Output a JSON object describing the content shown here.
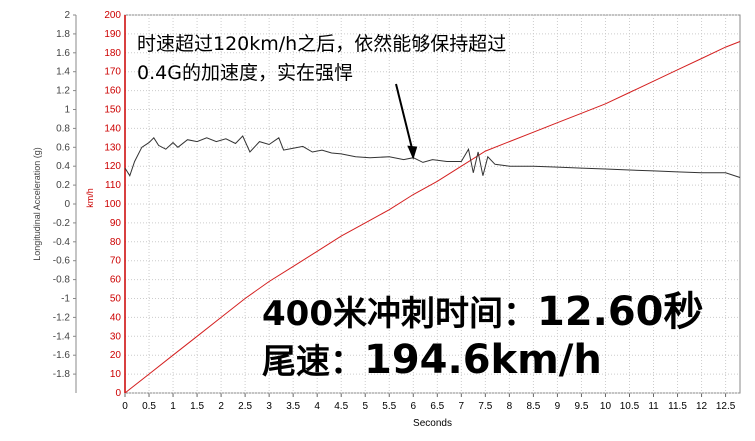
{
  "chart_data": {
    "type": "line",
    "xlabel": "Seconds",
    "xlim": [
      0,
      12.8
    ],
    "x_ticks": [
      "0",
      "0.5",
      "1",
      "1.5",
      "2",
      "2.5",
      "3",
      "3.5",
      "4",
      "4.5",
      "5",
      "5.5",
      "6",
      "6.5",
      "7",
      "7.5",
      "8",
      "8.5",
      "9",
      "9.5",
      "10",
      "10.5",
      "11",
      "11.5",
      "12",
      "12.5"
    ],
    "y_left": {
      "label": "Longitudinal Acceleration (g)",
      "lim": [
        -2,
        2
      ],
      "ticks": [
        "2",
        "1.8",
        "1.6",
        "1.4",
        "1.2",
        "1",
        "0.8",
        "0.6",
        "0.4",
        "0.2",
        "0",
        "-0.2",
        "-0.4",
        "-0.6",
        "-0.8",
        "-1",
        "-1.2",
        "-1.4",
        "-1.6",
        "-1.8"
      ],
      "color": "#444444"
    },
    "y_right": {
      "label": "km/h",
      "lim": [
        0,
        200
      ],
      "ticks": [
        "200",
        "190",
        "180",
        "170",
        "160",
        "150",
        "140",
        "130",
        "120",
        "110",
        "100",
        "90",
        "80",
        "70",
        "60",
        "50",
        "40",
        "30",
        "20",
        "10",
        "0"
      ],
      "color": "#cc0000"
    },
    "grid": true,
    "series": [
      {
        "axis": "right",
        "color": "#d42020",
        "points": [
          [
            0,
            0
          ],
          [
            0.5,
            10
          ],
          [
            1,
            20
          ],
          [
            1.5,
            30
          ],
          [
            2,
            40
          ],
          [
            2.5,
            50
          ],
          [
            3,
            59
          ],
          [
            3.5,
            67
          ],
          [
            4,
            75
          ],
          [
            4.5,
            83
          ],
          [
            5,
            90
          ],
          [
            5.5,
            97
          ],
          [
            6,
            105
          ],
          [
            6.5,
            112
          ],
          [
            7,
            120
          ],
          [
            7.5,
            128
          ],
          [
            8,
            133
          ],
          [
            8.5,
            138
          ],
          [
            9,
            143
          ],
          [
            9.5,
            148
          ],
          [
            10,
            153
          ],
          [
            10.5,
            159
          ],
          [
            11,
            165
          ],
          [
            11.5,
            171
          ],
          [
            12,
            177
          ],
          [
            12.5,
            183
          ],
          [
            12.8,
            186
          ]
        ]
      },
      {
        "axis": "left",
        "color": "#333333",
        "points": [
          [
            0,
            0.38
          ],
          [
            0.1,
            0.3
          ],
          [
            0.2,
            0.45
          ],
          [
            0.35,
            0.6
          ],
          [
            0.5,
            0.65
          ],
          [
            0.6,
            0.7
          ],
          [
            0.7,
            0.62
          ],
          [
            0.85,
            0.58
          ],
          [
            1,
            0.65
          ],
          [
            1.1,
            0.6
          ],
          [
            1.3,
            0.68
          ],
          [
            1.5,
            0.66
          ],
          [
            1.7,
            0.7
          ],
          [
            1.9,
            0.66
          ],
          [
            2.1,
            0.69
          ],
          [
            2.3,
            0.64
          ],
          [
            2.45,
            0.72
          ],
          [
            2.6,
            0.55
          ],
          [
            2.8,
            0.66
          ],
          [
            3,
            0.63
          ],
          [
            3.2,
            0.7
          ],
          [
            3.3,
            0.57
          ],
          [
            3.5,
            0.59
          ],
          [
            3.7,
            0.61
          ],
          [
            3.9,
            0.55
          ],
          [
            4.1,
            0.57
          ],
          [
            4.3,
            0.54
          ],
          [
            4.5,
            0.53
          ],
          [
            4.8,
            0.5
          ],
          [
            5.1,
            0.49
          ],
          [
            5.5,
            0.5
          ],
          [
            5.8,
            0.47
          ],
          [
            6,
            0.49
          ],
          [
            6.2,
            0.44
          ],
          [
            6.4,
            0.47
          ],
          [
            6.7,
            0.45
          ],
          [
            7,
            0.45
          ],
          [
            7.15,
            0.58
          ],
          [
            7.25,
            0.33
          ],
          [
            7.35,
            0.55
          ],
          [
            7.45,
            0.3
          ],
          [
            7.55,
            0.5
          ],
          [
            7.7,
            0.42
          ],
          [
            8,
            0.4
          ],
          [
            8.5,
            0.4
          ],
          [
            9,
            0.39
          ],
          [
            9.5,
            0.38
          ],
          [
            10,
            0.37
          ],
          [
            10.5,
            0.36
          ],
          [
            11,
            0.35
          ],
          [
            11.5,
            0.34
          ],
          [
            12,
            0.33
          ],
          [
            12.5,
            0.33
          ],
          [
            12.8,
            0.28
          ]
        ]
      }
    ]
  },
  "annotation": {
    "line1": "时速超过120km/h之后，依然能够保持超过",
    "line2": "0.4G的加速度，实在强悍",
    "arrow_target": [
      6,
      0.47
    ]
  },
  "result": {
    "label1": "400米冲刺时间：",
    "value1": "12.60秒",
    "label2": "尾速：",
    "value2": "194.6km/h"
  }
}
